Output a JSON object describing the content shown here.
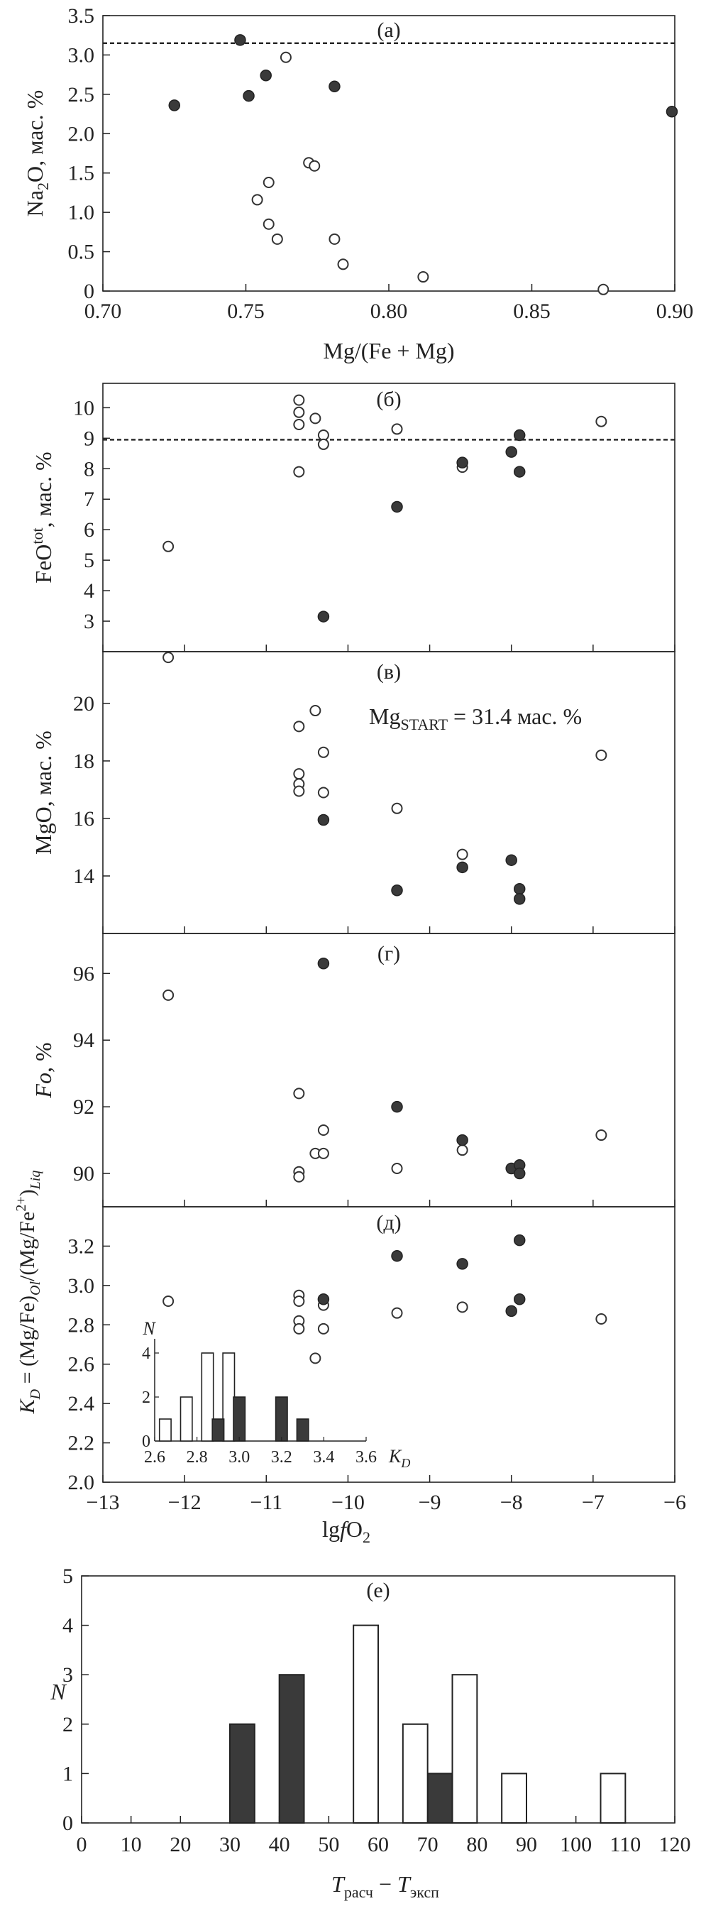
{
  "chart_data": [
    {
      "id": "a",
      "type": "scatter",
      "panel_label": "(а)",
      "xlabel": "Mg/(Fe + Mg)",
      "ylabel": "Na₂O, мас. %",
      "xlim": [
        0.7,
        0.9
      ],
      "ylim": [
        0,
        3.5
      ],
      "xticks": [
        "0.70",
        "0.75",
        "0.80",
        "0.85",
        "0.90"
      ],
      "yticks": [
        "0",
        "0.5",
        "1.0",
        "1.5",
        "2.0",
        "2.5",
        "3.0",
        "3.5"
      ],
      "reference_line": 3.15,
      "filled": [
        [
          0.725,
          2.36
        ],
        [
          0.748,
          3.19
        ],
        [
          0.751,
          2.48
        ],
        [
          0.757,
          2.74
        ],
        [
          0.781,
          2.6
        ],
        [
          0.899,
          2.28
        ]
      ],
      "open": [
        [
          0.764,
          2.97
        ],
        [
          0.754,
          1.16
        ],
        [
          0.758,
          1.38
        ],
        [
          0.758,
          0.85
        ],
        [
          0.761,
          0.66
        ],
        [
          0.772,
          1.63
        ],
        [
          0.774,
          1.59
        ],
        [
          0.781,
          0.66
        ],
        [
          0.784,
          0.34
        ],
        [
          0.812,
          0.18
        ],
        [
          0.875,
          0.02
        ]
      ]
    },
    {
      "id": "b",
      "type": "scatter",
      "panel_label": "(б)",
      "ylabel": "FeOtot, мас. %",
      "xlim": [
        -13,
        -6
      ],
      "ylim": [
        2,
        10.8
      ],
      "yticks": [
        "3",
        "4",
        "5",
        "6",
        "7",
        "8",
        "9",
        "10"
      ],
      "reference_line": 8.95,
      "filled": [
        [
          -10.3,
          3.15
        ],
        [
          -9.4,
          6.75
        ],
        [
          -8.6,
          8.2
        ],
        [
          -8.0,
          8.55
        ],
        [
          -7.9,
          9.1
        ],
        [
          -7.9,
          7.9
        ]
      ],
      "open": [
        [
          -12.2,
          5.45
        ],
        [
          -10.6,
          10.25
        ],
        [
          -10.6,
          9.85
        ],
        [
          -10.6,
          9.45
        ],
        [
          -10.6,
          7.9
        ],
        [
          -10.4,
          9.65
        ],
        [
          -10.3,
          9.1
        ],
        [
          -10.3,
          8.8
        ],
        [
          -9.4,
          9.3
        ],
        [
          -8.6,
          8.05
        ],
        [
          -6.9,
          9.55
        ]
      ]
    },
    {
      "id": "v",
      "type": "scatter",
      "panel_label": "(в)",
      "annotation": "Mg",
      "annotation_sub": "START",
      "annotation_tail": " = 31.4 мас. %",
      "ylabel": "MgO, мас. %",
      "xlim": [
        -13,
        -6
      ],
      "ylim": [
        12,
        21.8
      ],
      "yticks": [
        "14",
        "16",
        "18",
        "20"
      ],
      "filled": [
        [
          -10.3,
          15.95
        ],
        [
          -9.4,
          13.5
        ],
        [
          -8.6,
          14.3
        ],
        [
          -8.0,
          14.55
        ],
        [
          -7.9,
          13.55
        ],
        [
          -7.9,
          13.2
        ]
      ],
      "open": [
        [
          -12.2,
          21.6
        ],
        [
          -10.6,
          19.2
        ],
        [
          -10.6,
          17.55
        ],
        [
          -10.6,
          17.2
        ],
        [
          -10.6,
          16.95
        ],
        [
          -10.4,
          19.75
        ],
        [
          -10.3,
          18.3
        ],
        [
          -10.3,
          16.9
        ],
        [
          -9.4,
          16.35
        ],
        [
          -8.6,
          14.75
        ],
        [
          -6.9,
          18.2
        ]
      ]
    },
    {
      "id": "g",
      "type": "scatter",
      "panel_label": "(г)",
      "ylabel": "Fo, %",
      "xlim": [
        -13,
        -6
      ],
      "ylim": [
        89.0,
        97.2
      ],
      "yticks": [
        "90",
        "92",
        "94",
        "96"
      ],
      "filled": [
        [
          -10.3,
          96.3
        ],
        [
          -9.4,
          92.0
        ],
        [
          -8.6,
          91.0
        ],
        [
          -8.0,
          90.15
        ],
        [
          -7.9,
          90.25
        ],
        [
          -7.9,
          90.0
        ]
      ],
      "open": [
        [
          -12.2,
          95.35
        ],
        [
          -10.6,
          92.4
        ],
        [
          -10.6,
          90.05
        ],
        [
          -10.6,
          89.9
        ],
        [
          -10.4,
          90.6
        ],
        [
          -10.3,
          91.3
        ],
        [
          -10.3,
          90.6
        ],
        [
          -9.4,
          90.15
        ],
        [
          -8.6,
          90.7
        ],
        [
          -6.9,
          91.15
        ]
      ]
    },
    {
      "id": "d",
      "type": "scatter",
      "panel_label": "(д)",
      "xlabel": "lgfO₂",
      "ylabel": "KD = (Mg/Fe)Ol/(Mg/Fe2+)Liq",
      "xlim": [
        -13,
        -6
      ],
      "ylim": [
        2.0,
        3.4
      ],
      "xticks": [
        "−13",
        "−12",
        "−11",
        "−10",
        "−9",
        "−8",
        "−7",
        "−6"
      ],
      "yticks": [
        "2.0",
        "2.2",
        "2.4",
        "2.6",
        "2.8",
        "3.0",
        "3.2"
      ],
      "filled": [
        [
          -10.3,
          2.93
        ],
        [
          -9.4,
          3.15
        ],
        [
          -8.6,
          3.11
        ],
        [
          -8.0,
          2.87
        ],
        [
          -7.9,
          3.23
        ],
        [
          -7.9,
          2.93
        ]
      ],
      "open": [
        [
          -12.2,
          2.92
        ],
        [
          -10.6,
          2.95
        ],
        [
          -10.6,
          2.92
        ],
        [
          -10.6,
          2.82
        ],
        [
          -10.6,
          2.78
        ],
        [
          -10.4,
          2.63
        ],
        [
          -10.3,
          2.9
        ],
        [
          -10.3,
          2.78
        ],
        [
          -9.4,
          2.86
        ],
        [
          -8.6,
          2.89
        ],
        [
          -6.9,
          2.83
        ]
      ]
    },
    {
      "id": "d_inset",
      "type": "bar",
      "ylabel": "N",
      "xlabel": "KD",
      "xlim": [
        2.6,
        3.6
      ],
      "ylim": [
        0,
        4
      ],
      "xticks": [
        "2.6",
        "2.8",
        "3.0",
        "3.2",
        "3.4",
        "3.6"
      ],
      "yticks": [
        "0",
        "2",
        "4"
      ],
      "series": [
        {
          "fill": "open",
          "bins": [
            [
              2.65,
              1
            ],
            [
              2.75,
              2
            ],
            [
              2.85,
              4
            ],
            [
              2.95,
              4
            ]
          ]
        },
        {
          "fill": "filled",
          "bins": [
            [
              2.9,
              1
            ],
            [
              3.0,
              2
            ],
            [
              3.2,
              2
            ],
            [
              3.3,
              1
            ]
          ]
        }
      ]
    },
    {
      "id": "e",
      "type": "bar",
      "panel_label": "(е)",
      "xlabel": "Tрасч − Tэксп",
      "ylabel": "N",
      "xlim": [
        0,
        120
      ],
      "ylim": [
        0,
        5
      ],
      "xticks": [
        "0",
        "10",
        "20",
        "30",
        "40",
        "50",
        "60",
        "70",
        "80",
        "90",
        "100",
        "110",
        "120"
      ],
      "yticks": [
        "0",
        "1",
        "2",
        "3",
        "4",
        "5"
      ],
      "series": [
        {
          "fill": "filled",
          "bins": [
            [
              32.5,
              2
            ],
            [
              42.5,
              3
            ],
            [
              72.5,
              1
            ]
          ]
        },
        {
          "fill": "open",
          "bins": [
            [
              57.5,
              4
            ],
            [
              67.5,
              2
            ],
            [
              77.5,
              3
            ],
            [
              87.5,
              1
            ],
            [
              107.5,
              1
            ]
          ]
        }
      ]
    }
  ]
}
